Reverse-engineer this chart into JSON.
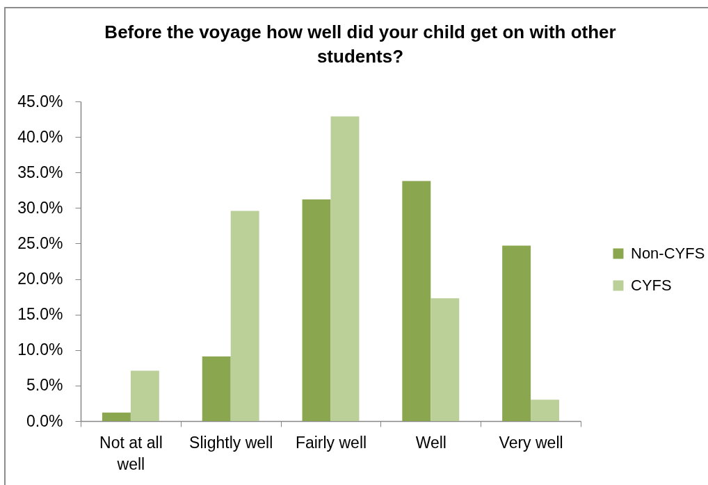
{
  "chart_data": {
    "type": "bar",
    "title": "Before the voyage how well did your child get on with other students?",
    "categories": [
      "Not at all well",
      "Slightly well",
      "Fairly well",
      "Well",
      "Very well"
    ],
    "series": [
      {
        "name": "Non-CYFS",
        "color": "#8aa64f",
        "values": [
          1.2,
          9.1,
          31.2,
          33.8,
          24.7
        ]
      },
      {
        "name": "CYFS",
        "color": "#bbcf98",
        "values": [
          7.1,
          29.6,
          42.9,
          17.3,
          3.0
        ]
      }
    ],
    "ylim": [
      0,
      45
    ],
    "yticks": [
      {
        "value": 0,
        "label": "0.0%"
      },
      {
        "value": 5,
        "label": "5.0%"
      },
      {
        "value": 10,
        "label": "10.0%"
      },
      {
        "value": 15,
        "label": "15.0%"
      },
      {
        "value": 20,
        "label": "20.0%"
      },
      {
        "value": 25,
        "label": "25.0%"
      },
      {
        "value": 30,
        "label": "30.0%"
      },
      {
        "value": 35,
        "label": "35.0%"
      },
      {
        "value": 40,
        "label": "40.0%"
      },
      {
        "value": 45,
        "label": "45.0%"
      }
    ],
    "legend": "right"
  }
}
